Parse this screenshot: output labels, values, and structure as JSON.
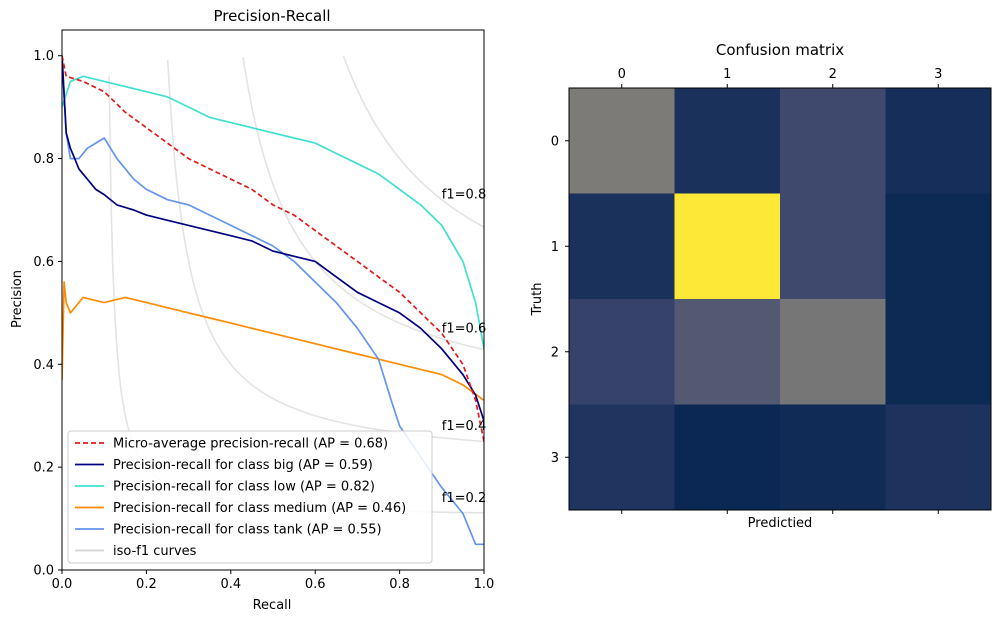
{
  "chart_data": [
    {
      "type": "line",
      "title": "Precision-Recall",
      "xlabel": "Recall",
      "ylabel": "Precision",
      "xlim": [
        0.0,
        1.0
      ],
      "ylim": [
        0.0,
        1.05
      ],
      "xticks": [
        "0.0",
        "0.2",
        "0.4",
        "0.6",
        "0.8",
        "1.0"
      ],
      "yticks": [
        "0.0",
        "0.2",
        "0.4",
        "0.6",
        "0.8",
        "1.0"
      ],
      "grid": false,
      "legend_position": "lower-left",
      "iso_f1": [
        {
          "f1": 0.2,
          "label": "f1=0.2",
          "label_xy": [
            0.9,
            0.14
          ]
        },
        {
          "f1": 0.4,
          "label": "f1=0.4",
          "label_xy": [
            0.9,
            0.28
          ]
        },
        {
          "f1": 0.6,
          "label": "f1=0.6",
          "label_xy": [
            0.9,
            0.47
          ]
        },
        {
          "f1": 0.8,
          "label": "f1=0.8",
          "label_xy": [
            0.9,
            0.73
          ]
        }
      ],
      "series": [
        {
          "name": "Micro-average precision-recall (AP = 0.68)",
          "color": "#e31a1c",
          "dash": true,
          "points": [
            [
              0.0,
              1.0
            ],
            [
              0.01,
              0.96
            ],
            [
              0.05,
              0.95
            ],
            [
              0.1,
              0.93
            ],
            [
              0.15,
              0.89
            ],
            [
              0.2,
              0.86
            ],
            [
              0.25,
              0.83
            ],
            [
              0.3,
              0.8
            ],
            [
              0.35,
              0.78
            ],
            [
              0.4,
              0.76
            ],
            [
              0.45,
              0.74
            ],
            [
              0.5,
              0.71
            ],
            [
              0.55,
              0.69
            ],
            [
              0.6,
              0.66
            ],
            [
              0.65,
              0.63
            ],
            [
              0.7,
              0.6
            ],
            [
              0.75,
              0.57
            ],
            [
              0.8,
              0.54
            ],
            [
              0.85,
              0.5
            ],
            [
              0.9,
              0.46
            ],
            [
              0.95,
              0.4
            ],
            [
              0.98,
              0.33
            ],
            [
              1.0,
              0.25
            ]
          ]
        },
        {
          "name": "Precision-recall for class big (AP = 0.59)",
          "color": "#000080",
          "dash": false,
          "points": [
            [
              0.0,
              1.0
            ],
            [
              0.01,
              0.85
            ],
            [
              0.02,
              0.82
            ],
            [
              0.03,
              0.8
            ],
            [
              0.04,
              0.78
            ],
            [
              0.06,
              0.76
            ],
            [
              0.08,
              0.74
            ],
            [
              0.1,
              0.73
            ],
            [
              0.13,
              0.71
            ],
            [
              0.17,
              0.7
            ],
            [
              0.2,
              0.69
            ],
            [
              0.25,
              0.68
            ],
            [
              0.3,
              0.67
            ],
            [
              0.35,
              0.66
            ],
            [
              0.4,
              0.65
            ],
            [
              0.45,
              0.64
            ],
            [
              0.5,
              0.62
            ],
            [
              0.55,
              0.61
            ],
            [
              0.6,
              0.6
            ],
            [
              0.65,
              0.57
            ],
            [
              0.7,
              0.54
            ],
            [
              0.75,
              0.52
            ],
            [
              0.8,
              0.5
            ],
            [
              0.85,
              0.47
            ],
            [
              0.9,
              0.43
            ],
            [
              0.95,
              0.38
            ],
            [
              0.98,
              0.34
            ],
            [
              1.0,
              0.29
            ]
          ]
        },
        {
          "name": "Precision-recall for class low (AP = 0.82)",
          "color": "#40e0d0",
          "dash": false,
          "points": [
            [
              0.0,
              0.9
            ],
            [
              0.02,
              0.95
            ],
            [
              0.05,
              0.96
            ],
            [
              0.1,
              0.95
            ],
            [
              0.15,
              0.94
            ],
            [
              0.2,
              0.93
            ],
            [
              0.25,
              0.92
            ],
            [
              0.3,
              0.9
            ],
            [
              0.35,
              0.88
            ],
            [
              0.4,
              0.87
            ],
            [
              0.45,
              0.86
            ],
            [
              0.5,
              0.85
            ],
            [
              0.55,
              0.84
            ],
            [
              0.6,
              0.83
            ],
            [
              0.65,
              0.81
            ],
            [
              0.7,
              0.79
            ],
            [
              0.75,
              0.77
            ],
            [
              0.8,
              0.74
            ],
            [
              0.85,
              0.71
            ],
            [
              0.9,
              0.67
            ],
            [
              0.95,
              0.6
            ],
            [
              0.98,
              0.52
            ],
            [
              1.0,
              0.43
            ]
          ]
        },
        {
          "name": "Precision-recall for class medium (AP = 0.46)",
          "color": "#ff8c00",
          "dash": false,
          "points": [
            [
              0.0,
              0.37
            ],
            [
              0.005,
              0.56
            ],
            [
              0.01,
              0.52
            ],
            [
              0.02,
              0.5
            ],
            [
              0.03,
              0.51
            ],
            [
              0.05,
              0.53
            ],
            [
              0.1,
              0.52
            ],
            [
              0.15,
              0.53
            ],
            [
              0.2,
              0.52
            ],
            [
              0.25,
              0.51
            ],
            [
              0.3,
              0.5
            ],
            [
              0.35,
              0.49
            ],
            [
              0.4,
              0.48
            ],
            [
              0.45,
              0.47
            ],
            [
              0.5,
              0.46
            ],
            [
              0.55,
              0.45
            ],
            [
              0.6,
              0.44
            ],
            [
              0.65,
              0.43
            ],
            [
              0.7,
              0.42
            ],
            [
              0.75,
              0.41
            ],
            [
              0.8,
              0.4
            ],
            [
              0.85,
              0.39
            ],
            [
              0.9,
              0.38
            ],
            [
              0.95,
              0.36
            ],
            [
              1.0,
              0.33
            ]
          ]
        },
        {
          "name": "Precision-recall for class tank (AP = 0.55)",
          "color": "#6495ed",
          "dash": false,
          "points": [
            [
              0.0,
              1.0
            ],
            [
              0.01,
              0.85
            ],
            [
              0.02,
              0.8
            ],
            [
              0.04,
              0.8
            ],
            [
              0.06,
              0.82
            ],
            [
              0.08,
              0.83
            ],
            [
              0.1,
              0.84
            ],
            [
              0.13,
              0.8
            ],
            [
              0.17,
              0.76
            ],
            [
              0.2,
              0.74
            ],
            [
              0.25,
              0.72
            ],
            [
              0.3,
              0.71
            ],
            [
              0.35,
              0.69
            ],
            [
              0.4,
              0.67
            ],
            [
              0.45,
              0.65
            ],
            [
              0.5,
              0.63
            ],
            [
              0.55,
              0.6
            ],
            [
              0.6,
              0.56
            ],
            [
              0.65,
              0.52
            ],
            [
              0.7,
              0.47
            ],
            [
              0.75,
              0.41
            ],
            [
              0.78,
              0.33
            ],
            [
              0.8,
              0.28
            ],
            [
              0.85,
              0.22
            ],
            [
              0.9,
              0.16
            ],
            [
              0.95,
              0.11
            ],
            [
              0.98,
              0.05
            ],
            [
              1.0,
              0.05
            ]
          ]
        },
        {
          "name": "iso-f1 curves",
          "color": "#d3d3d3",
          "dash": false,
          "legend_only": true,
          "points": []
        }
      ]
    },
    {
      "type": "heatmap",
      "title": "Confusion matrix",
      "xlabel": "Predictied",
      "ylabel": "Truth",
      "x_categories": [
        "0",
        "1",
        "2",
        "3"
      ],
      "y_categories": [
        "0",
        "1",
        "2",
        "3"
      ],
      "colormap": "cividis",
      "values": [
        [
          0.5,
          0.12,
          0.28,
          0.1
        ],
        [
          0.12,
          1.0,
          0.28,
          0.06
        ],
        [
          0.25,
          0.35,
          0.48,
          0.06
        ],
        [
          0.14,
          0.05,
          0.07,
          0.13
        ]
      ]
    }
  ]
}
